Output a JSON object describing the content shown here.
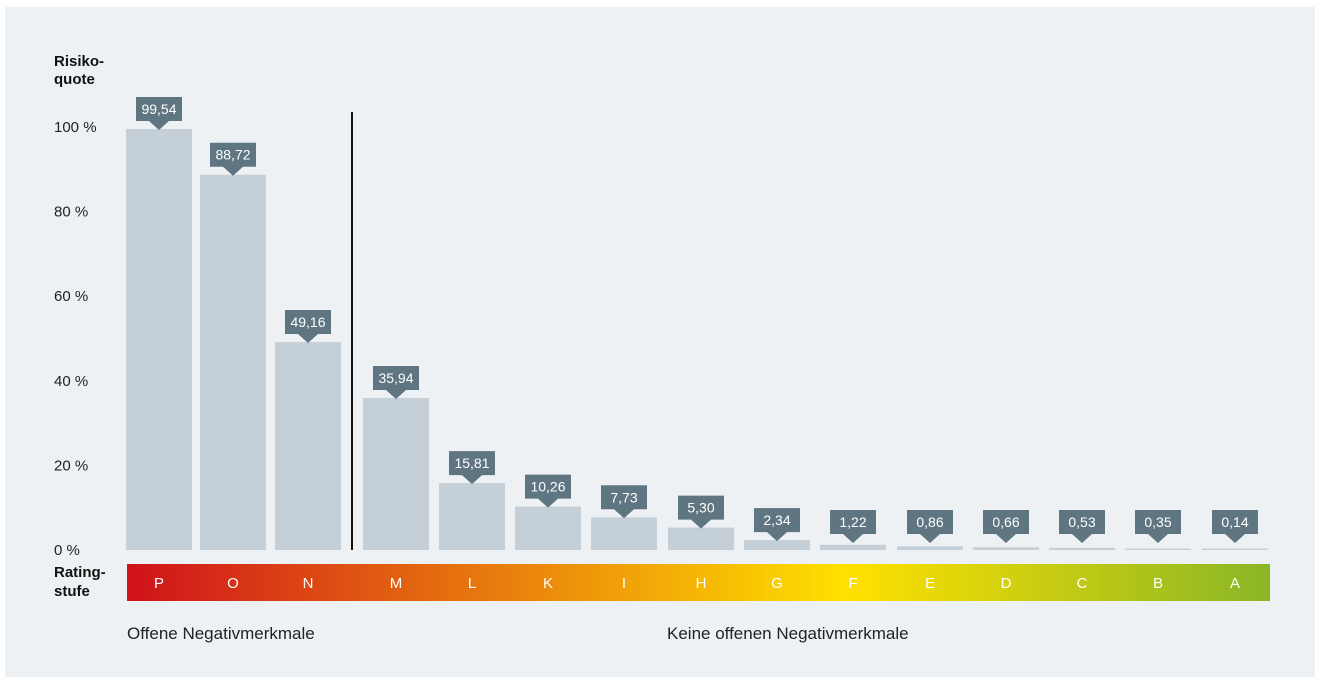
{
  "chart_data": {
    "type": "bar",
    "ylabel_lines": [
      "Risiko-",
      "quote"
    ],
    "xlabel_lines": [
      "Rating-",
      "stufe"
    ],
    "categories": [
      "P",
      "O",
      "N",
      "M",
      "L",
      "K",
      "I",
      "H",
      "G",
      "F",
      "E",
      "D",
      "C",
      "B",
      "A"
    ],
    "values": [
      99.54,
      88.72,
      49.16,
      35.94,
      15.81,
      10.26,
      7.73,
      5.3,
      2.34,
      1.22,
      0.86,
      0.66,
      0.53,
      0.35,
      0.14
    ],
    "value_labels": [
      "99,54",
      "88,72",
      "49,16",
      "35,94",
      "15,81",
      "10,26",
      "7,73",
      "5,30",
      "2,34",
      "1,22",
      "0,86",
      "0,66",
      "0,53",
      "0,35",
      "0,14"
    ],
    "yticks": [
      0,
      20,
      40,
      60,
      80,
      100
    ],
    "ytick_labels": [
      "0 %",
      "20 %",
      "40 %",
      "60 %",
      "80 %",
      "100 %"
    ],
    "ylim": [
      0,
      100
    ],
    "grid": false,
    "groups": [
      {
        "label": "Offene Negativmerkmale",
        "categories": [
          "P",
          "O",
          "N"
        ]
      },
      {
        "label": "Keine offenen Negativmerkmale",
        "categories": [
          "M",
          "L",
          "K",
          "I",
          "H",
          "G",
          "F",
          "E",
          "D",
          "C",
          "B",
          "A"
        ]
      }
    ],
    "colors": {
      "bar": "#c5cfd7",
      "value_marker": "#5f7581",
      "scale_start": "#d0121b",
      "scale_mid": "#ffe100",
      "scale_end": "#8ab626"
    }
  }
}
